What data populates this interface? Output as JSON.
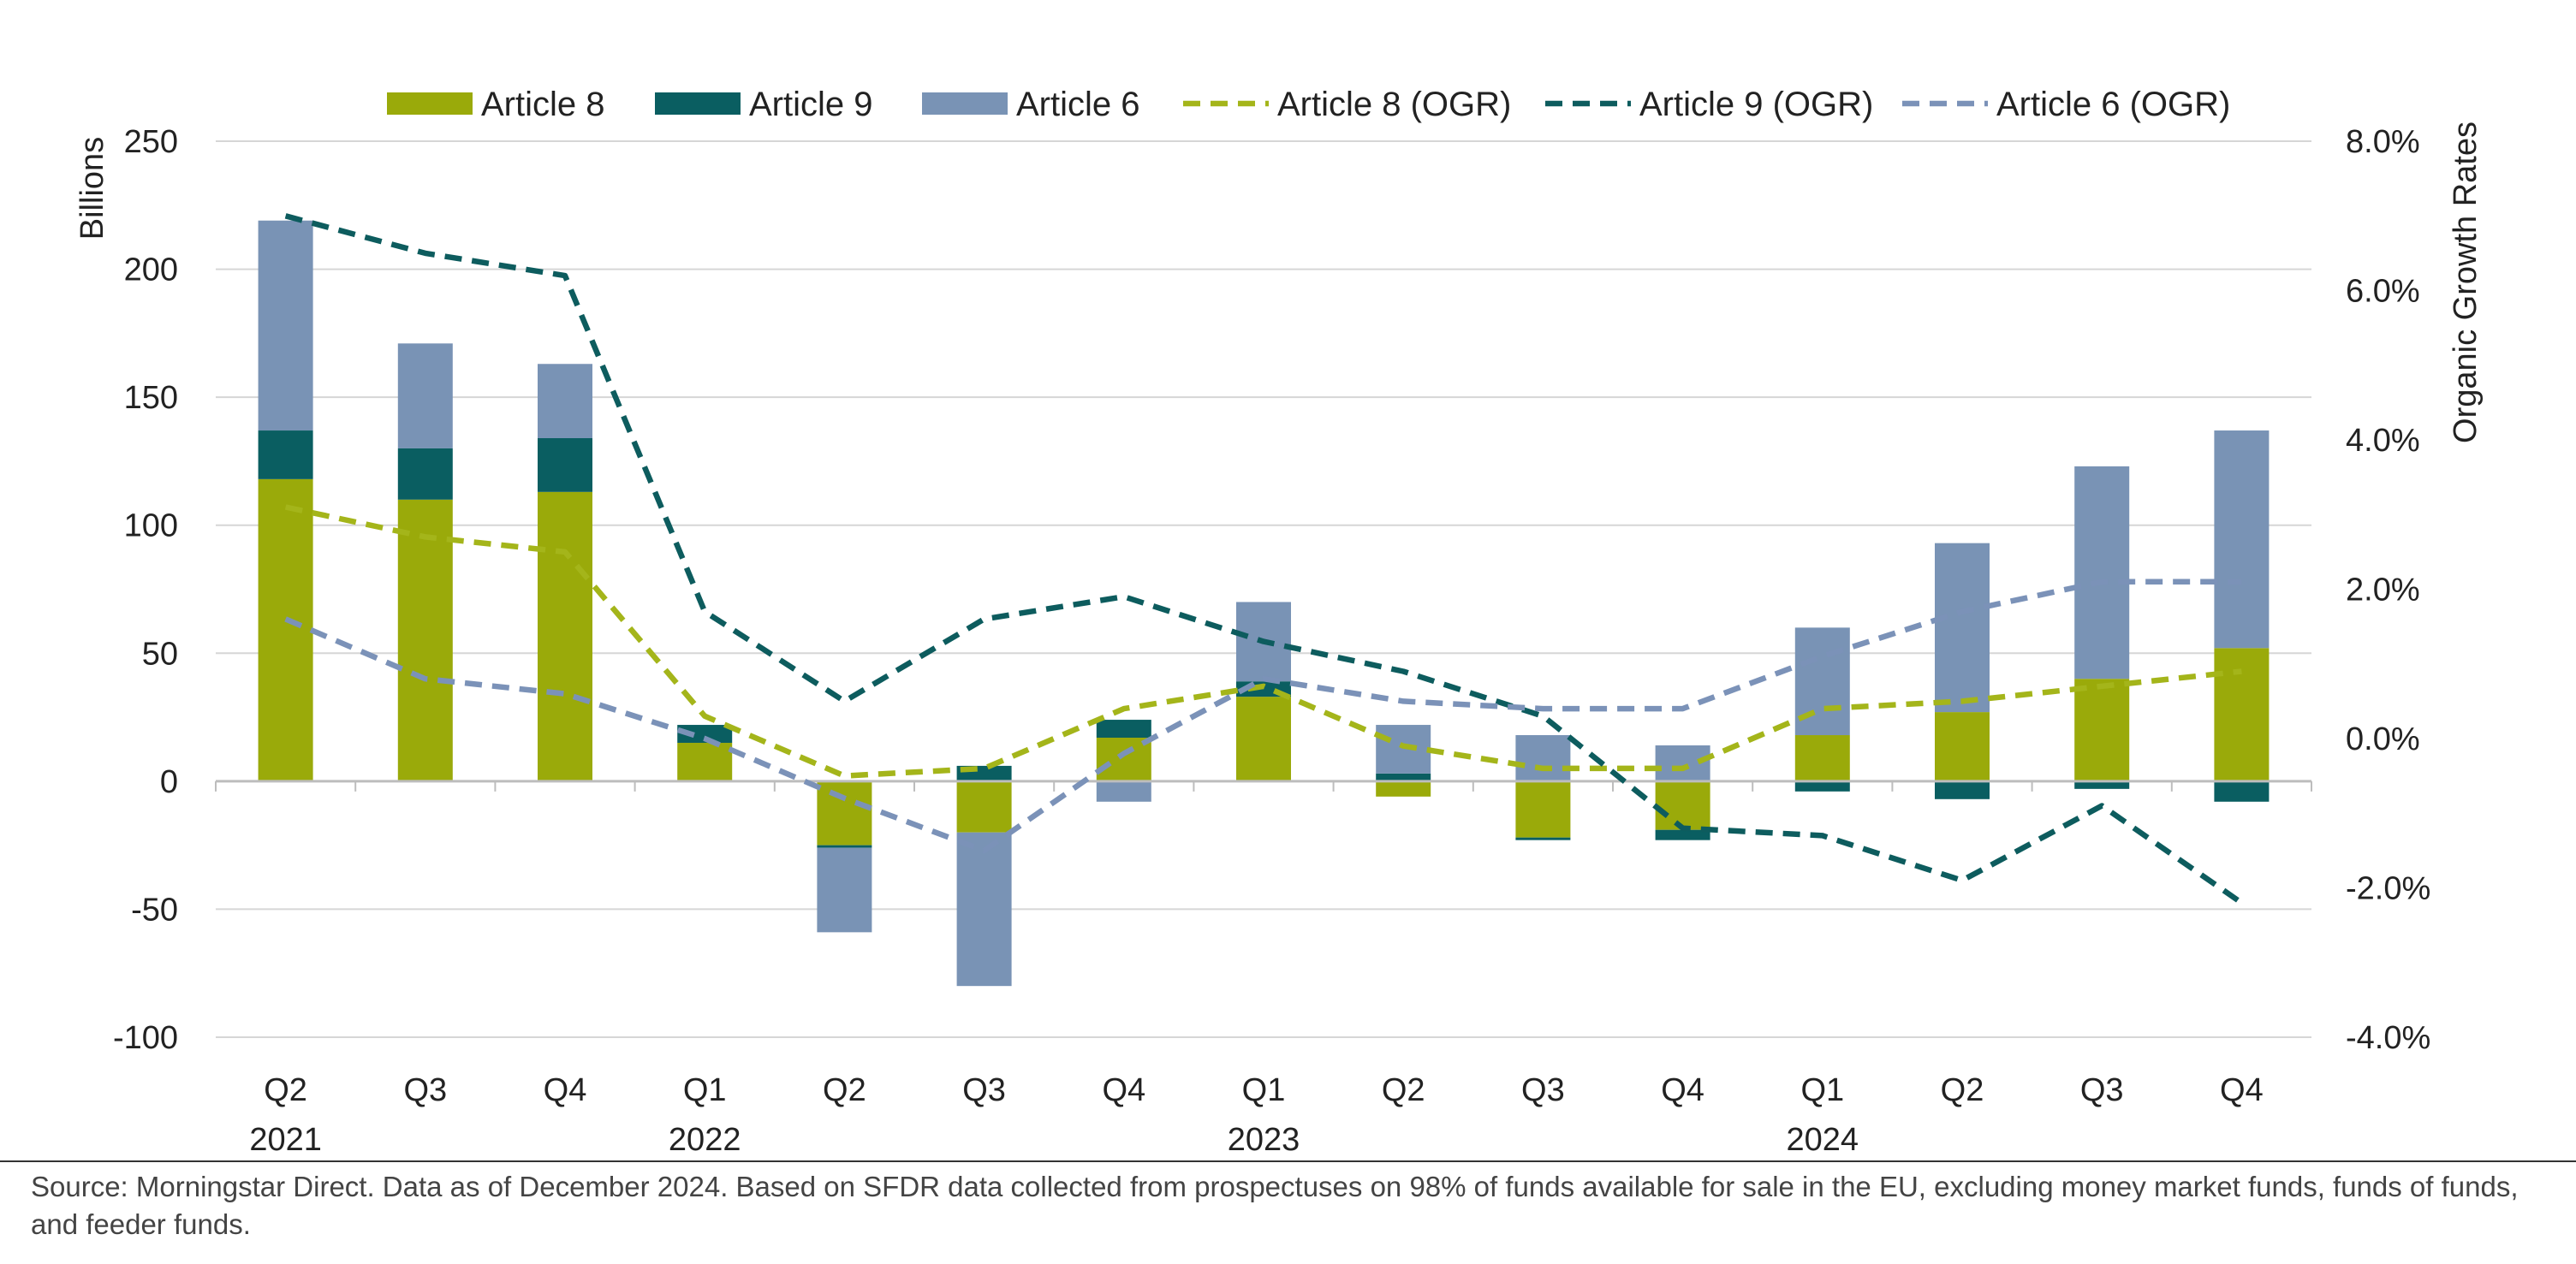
{
  "chart_data": {
    "type": "bar",
    "subtype": "stacked bar with dashed lines on secondary axis",
    "categories": [
      "Q2",
      "Q3",
      "Q4",
      "Q1",
      "Q2",
      "Q3",
      "Q4",
      "Q1",
      "Q2",
      "Q3",
      "Q4",
      "Q1",
      "Q2",
      "Q3",
      "Q4"
    ],
    "year_labels": [
      {
        "index": 0,
        "label": "2021"
      },
      {
        "index": 3,
        "label": "2022"
      },
      {
        "index": 7,
        "label": "2023"
      },
      {
        "index": 11,
        "label": "2024"
      }
    ],
    "ylabel": "Billions",
    "ylim": [
      -100,
      250
    ],
    "yticks": [
      -100,
      -50,
      0,
      50,
      100,
      150,
      200,
      250
    ],
    "ylabel_right": "Organic Growth Rates",
    "ylim_right": [
      -4.0,
      8.0
    ],
    "yticks_right": [
      "-4.0%",
      "-2.0%",
      "0.0%",
      "2.0%",
      "4.0%",
      "6.0%",
      "8.0%"
    ],
    "grid": true,
    "legend_position": "top",
    "bar_series": [
      {
        "name": "Article 8",
        "color": "#9aaa0a",
        "values": [
          118,
          110,
          113,
          15,
          -25,
          -20,
          17,
          33,
          -6,
          -22,
          -19,
          18,
          27,
          40,
          52
        ]
      },
      {
        "name": "Article 9",
        "color": "#0a5e61",
        "values": [
          19,
          20,
          21,
          7,
          -1,
          6,
          7,
          6,
          3,
          -1,
          -4,
          -4,
          -7,
          -3,
          -8
        ]
      },
      {
        "name": "Article 6",
        "color": "#7993b5",
        "values": [
          82,
          41,
          29,
          0,
          -33,
          -60,
          -8,
          31,
          19,
          18,
          14,
          42,
          66,
          83,
          85
        ]
      }
    ],
    "line_series": [
      {
        "name": "Article 8 (OGR)",
        "color": "#a4b51a",
        "values": [
          3.1,
          2.7,
          2.5,
          0.3,
          -0.5,
          -0.4,
          0.4,
          0.7,
          -0.1,
          -0.4,
          -0.4,
          0.4,
          0.5,
          0.7,
          0.9
        ]
      },
      {
        "name": "Article 9 (OGR)",
        "color": "#0d5c5e",
        "values": [
          7.0,
          6.5,
          6.2,
          1.7,
          0.5,
          1.6,
          1.9,
          1.3,
          0.9,
          0.3,
          -1.2,
          -1.3,
          -1.9,
          -0.9,
          -2.2
        ]
      },
      {
        "name": "Article 6 (OGR)",
        "color": "#7b92b8",
        "values": [
          1.6,
          0.8,
          0.6,
          0.0,
          -0.8,
          -1.5,
          -0.2,
          0.8,
          0.5,
          0.4,
          0.4,
          1.1,
          1.7,
          2.1,
          2.1
        ]
      }
    ]
  },
  "source_note": "Source: Morningstar Direct. Data as of December 2024. Based on SFDR data collected from prospectuses on 98% of funds available for sale in the EU, excluding money market funds, funds of funds, and feeder funds."
}
